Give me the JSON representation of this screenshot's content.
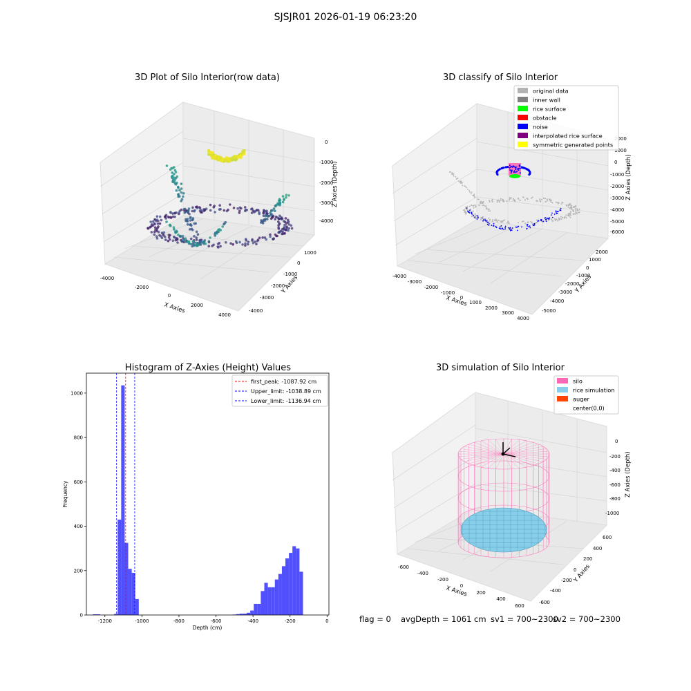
{
  "figure": {
    "suptitle": "SJSJR01 2026-01-19 06:23:20"
  },
  "status": {
    "flag": "flag = 0",
    "avg_depth": "avgDepth = 1061 cm",
    "sv1": "sv1 = 700~2300",
    "sv2": "sv2 = 700~2300"
  },
  "chart_data": [
    {
      "type": "scatter",
      "projection": "3d",
      "title": "3D Plot of Silo Interior(row data)",
      "xlabel": "X Axies",
      "ylabel": "Y Axies",
      "zlabel": "Z Axies (Depth)",
      "xticks": [
        "-4000",
        "-2000",
        "0",
        "2000",
        "4000"
      ],
      "yticks": [
        "1000",
        "0",
        "-1000",
        "-2000",
        "-3000",
        "-4000"
      ],
      "zticks": [
        "0",
        "-1000",
        "-2000",
        "-3000",
        "-4000"
      ],
      "colormap": "viridis",
      "grid": true
    },
    {
      "type": "scatter",
      "projection": "3d",
      "title": "3D classify of Silo Interior",
      "xlabel": "X Axies",
      "ylabel": "Y Axies",
      "zlabel": "Z Axies (Depth)",
      "xticks": [
        "-4000",
        "-3000",
        "-2000",
        "-1000",
        "0",
        "1000",
        "2000",
        "3000",
        "4000"
      ],
      "yticks": [
        "2000",
        "1000",
        "0",
        "-1000",
        "-2000",
        "-3000",
        "-4000",
        "-5000"
      ],
      "zticks": [
        "2000",
        "1000",
        "0",
        "-1000",
        "-2000",
        "-3000",
        "-4000",
        "-5000",
        "-6000"
      ],
      "legend_position": "top-right",
      "legend": [
        {
          "label": "original data",
          "color": "#b4b4b4"
        },
        {
          "label": "inner wall",
          "color": "#808080"
        },
        {
          "label": "rice surface",
          "color": "#00ff00"
        },
        {
          "label": "obstacle",
          "color": "#ff0000"
        },
        {
          "label": "noise",
          "color": "#0000ff"
        },
        {
          "label": "interpolated rice surface",
          "color": "#800080"
        },
        {
          "label": "symmetric generated points",
          "color": "#ffff00"
        }
      ],
      "grid": true
    },
    {
      "type": "bar",
      "subtype": "histogram",
      "title": "Histogram of Z-Axies (Height) Values",
      "xlabel": "Depth (cm)",
      "ylabel": "Frequency",
      "xlim": [
        -1300,
        10
      ],
      "ylim": [
        0,
        1090
      ],
      "xticks": [
        -1200,
        -1000,
        -800,
        -600,
        -400,
        -200,
        0
      ],
      "yticks": [
        0,
        200,
        400,
        600,
        800,
        1000
      ],
      "bar_color": "#5050ff",
      "bin_width": 19,
      "bins": [
        {
          "x": -1264,
          "count": 3
        },
        {
          "x": -1245,
          "count": 3
        },
        {
          "x": -1150,
          "count": 5
        },
        {
          "x": -1131,
          "count": 430
        },
        {
          "x": -1112,
          "count": 1035
        },
        {
          "x": -1093,
          "count": 325
        },
        {
          "x": -1074,
          "count": 208
        },
        {
          "x": -1055,
          "count": 190
        },
        {
          "x": -1036,
          "count": 72
        },
        {
          "x": -510,
          "count": 2
        },
        {
          "x": -491,
          "count": 4
        },
        {
          "x": -472,
          "count": 6
        },
        {
          "x": -453,
          "count": 6
        },
        {
          "x": -434,
          "count": 10
        },
        {
          "x": -415,
          "count": 20
        },
        {
          "x": -396,
          "count": 50
        },
        {
          "x": -377,
          "count": 50
        },
        {
          "x": -358,
          "count": 108
        },
        {
          "x": -339,
          "count": 145
        },
        {
          "x": -320,
          "count": 125
        },
        {
          "x": -301,
          "count": 125
        },
        {
          "x": -282,
          "count": 160
        },
        {
          "x": -263,
          "count": 185
        },
        {
          "x": -244,
          "count": 220
        },
        {
          "x": -225,
          "count": 255
        },
        {
          "x": -206,
          "count": 280
        },
        {
          "x": -187,
          "count": 310
        },
        {
          "x": -168,
          "count": 300
        },
        {
          "x": -149,
          "count": 195
        }
      ],
      "lines": [
        {
          "label": "first_peak: -1087.92 cm",
          "x": -1087.92,
          "color": "#ff0000",
          "style": "dashed"
        },
        {
          "label": "Upper_limit: -1038.89 cm",
          "x": -1038.89,
          "color": "#0000ff",
          "style": "dashed"
        },
        {
          "label": "Lower_limit: -1136.94 cm",
          "x": -1136.94,
          "color": "#0000ff",
          "style": "dashed"
        }
      ],
      "legend_position": "top-right",
      "grid": false
    },
    {
      "type": "scatter",
      "projection": "3d",
      "title": "3D simulation of Silo Interior",
      "xlabel": "X Axies",
      "ylabel": "Y Axies",
      "zlabel": "Z Axies (Depth)",
      "xticks": [
        "-600",
        "-400",
        "-200",
        "0",
        "200",
        "400",
        "600"
      ],
      "yticks": [
        "600",
        "400",
        "200",
        "0",
        "-200",
        "-400",
        "-600"
      ],
      "zticks": [
        "0",
        "-200",
        "-400",
        "-600",
        "-800",
        "-1000"
      ],
      "legend_position": "top-right",
      "legend": [
        {
          "label": "silo",
          "color": "#ff69b4"
        },
        {
          "label": "rice simulation",
          "color": "#87ceeb"
        },
        {
          "label": "auger",
          "color": "#ff4500"
        },
        {
          "label": "center(0,0)",
          "color": ""
        }
      ],
      "grid": true
    }
  ]
}
